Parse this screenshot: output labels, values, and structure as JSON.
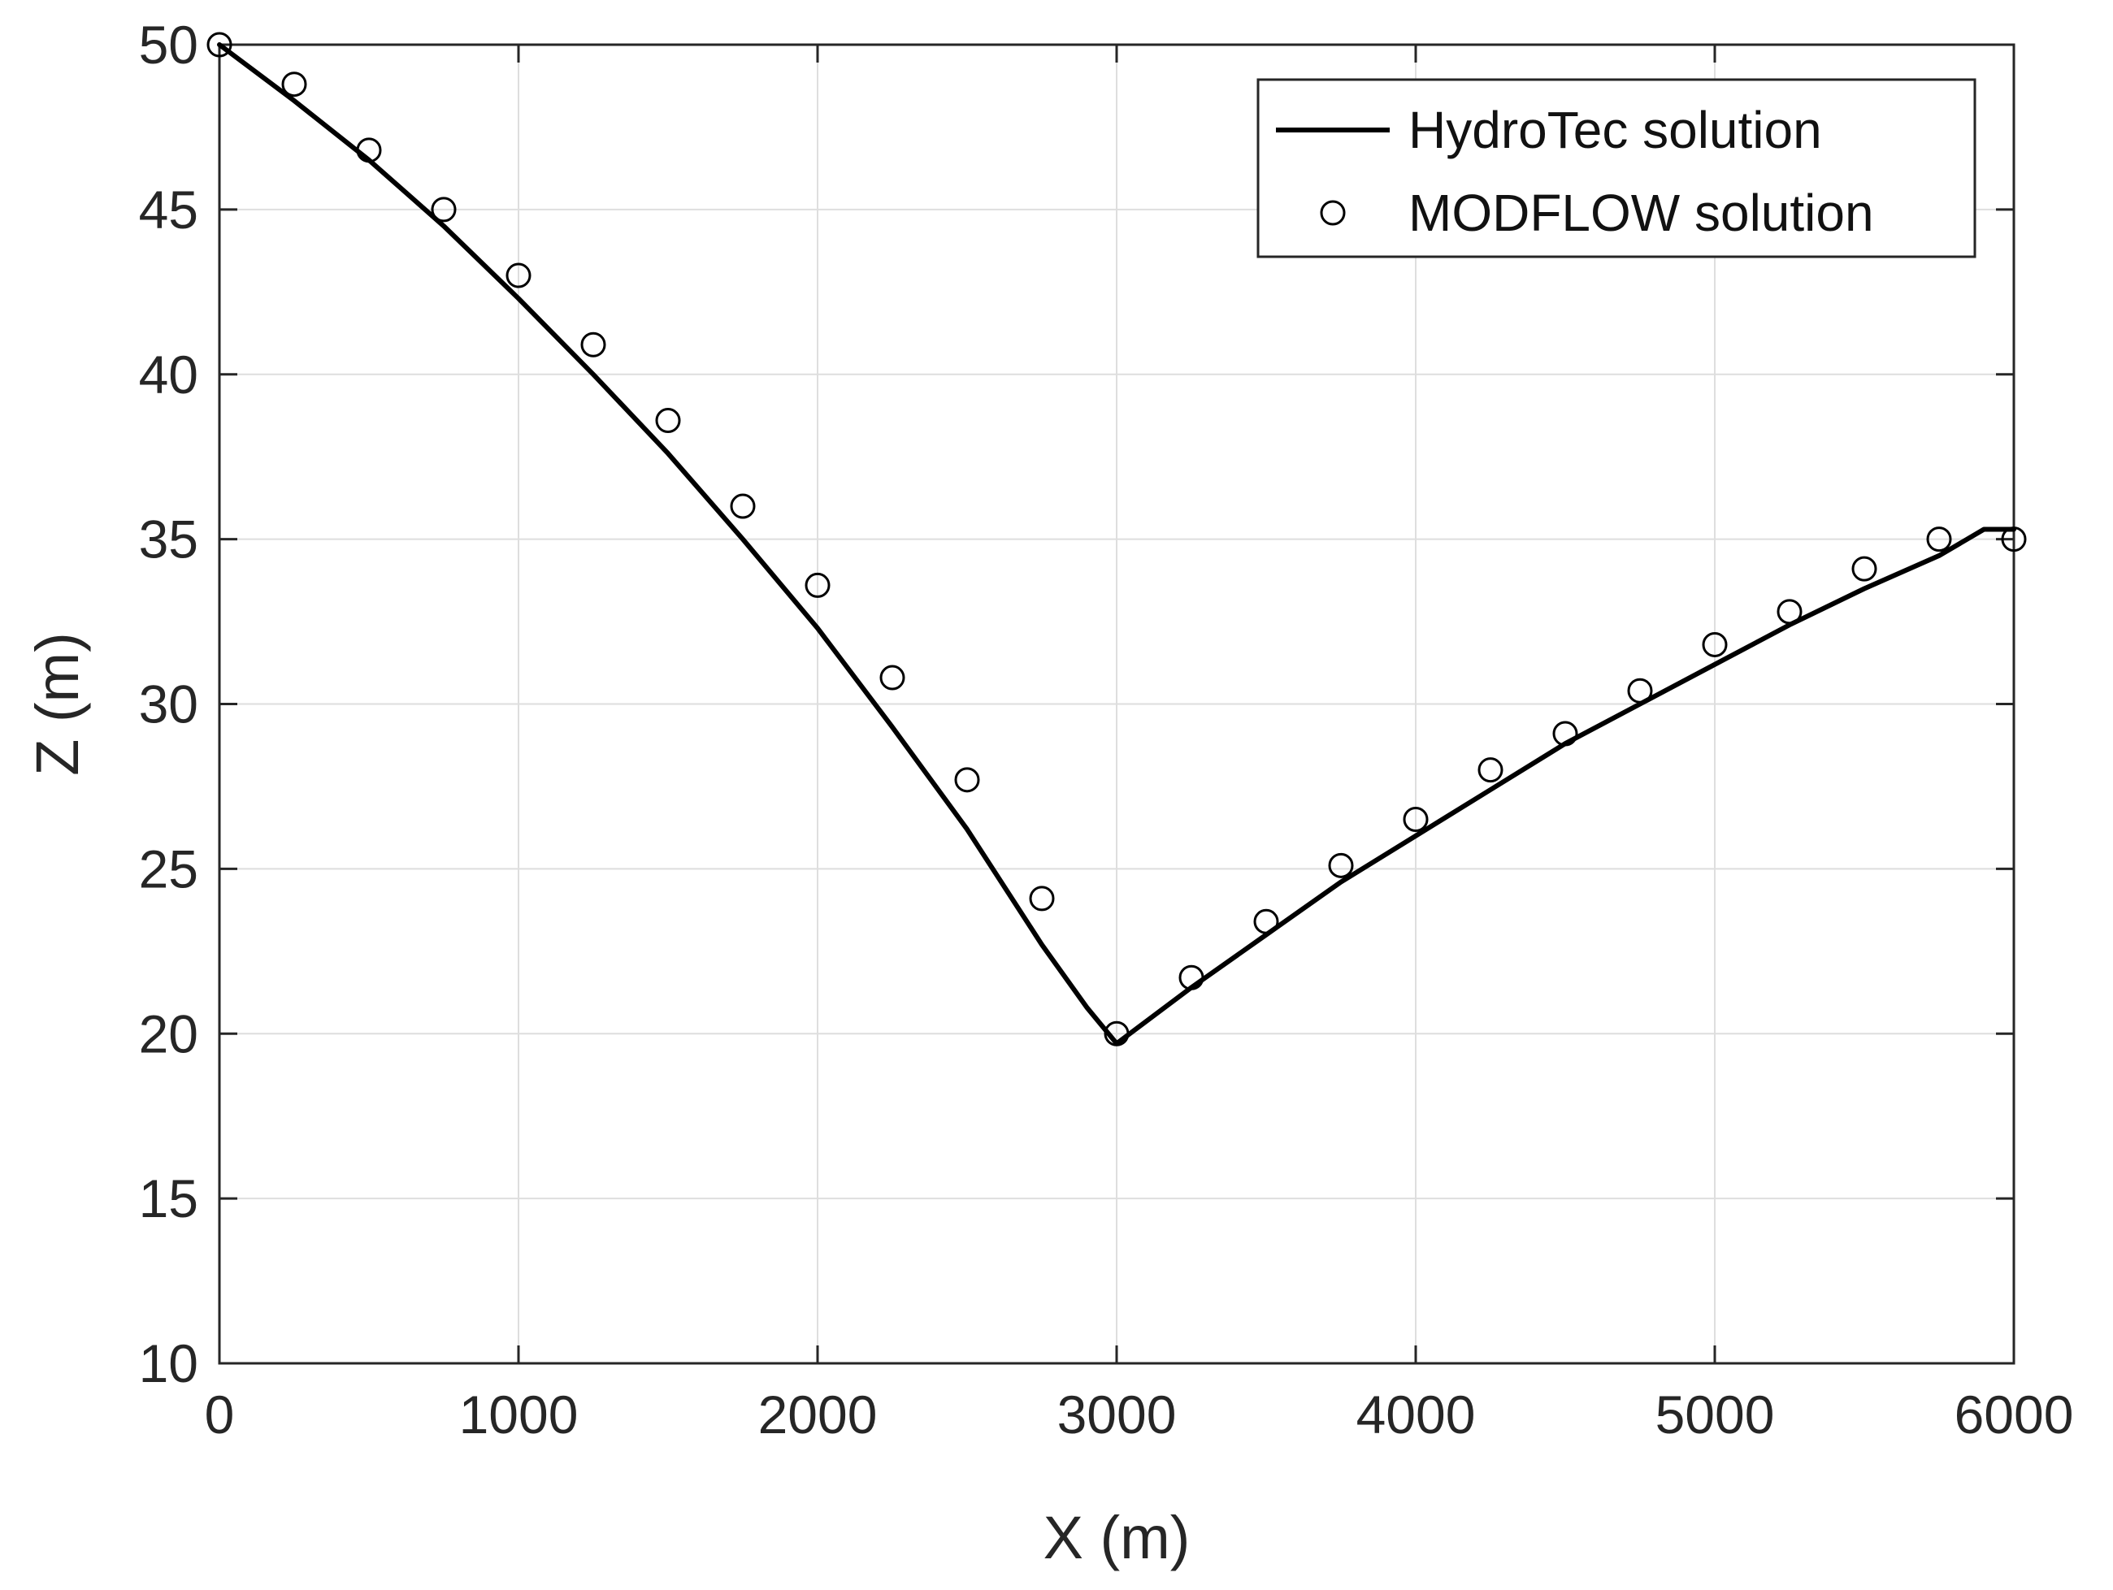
{
  "chart_data": {
    "type": "line",
    "title": "",
    "xlabel": "X (m)",
    "ylabel": "Z (m)",
    "xlim": [
      0,
      6000
    ],
    "ylim": [
      10,
      50
    ],
    "xticks": [
      0,
      1000,
      2000,
      3000,
      4000,
      5000,
      6000
    ],
    "yticks": [
      10,
      15,
      20,
      25,
      30,
      35,
      40,
      45,
      50
    ],
    "grid": true,
    "legend": {
      "placement": "top-right"
    },
    "series": [
      {
        "name": "HydroTec solution",
        "style": "line",
        "color": "#000000",
        "x": [
          0,
          250,
          500,
          750,
          1000,
          1250,
          1500,
          1750,
          2000,
          2250,
          2500,
          2750,
          2900,
          3000,
          3250,
          3500,
          3750,
          4000,
          4250,
          4500,
          4750,
          5000,
          5250,
          5500,
          5750,
          5900,
          6000
        ],
        "y": [
          50.0,
          48.3,
          46.5,
          44.5,
          42.3,
          40.0,
          37.6,
          35.0,
          32.3,
          29.3,
          26.2,
          22.7,
          20.8,
          19.7,
          21.4,
          23.0,
          24.6,
          26.0,
          27.4,
          28.8,
          30.0,
          31.2,
          32.4,
          33.5,
          34.5,
          35.3,
          35.3
        ]
      },
      {
        "name": "MODFLOW solution",
        "style": "markers",
        "marker": "circle",
        "color": "#000000",
        "x": [
          0,
          250,
          500,
          750,
          1000,
          1250,
          1500,
          1750,
          2000,
          2250,
          2500,
          2750,
          3000,
          3250,
          3500,
          3750,
          4000,
          4250,
          4500,
          4750,
          5000,
          5250,
          5500,
          5750,
          6000
        ],
        "y": [
          50.0,
          48.8,
          46.8,
          45.0,
          43.0,
          40.9,
          38.6,
          36.0,
          33.6,
          30.8,
          27.7,
          24.1,
          20.0,
          21.7,
          23.4,
          25.1,
          26.5,
          28.0,
          29.1,
          30.4,
          31.8,
          32.8,
          34.1,
          35.0,
          35.0
        ]
      }
    ]
  }
}
